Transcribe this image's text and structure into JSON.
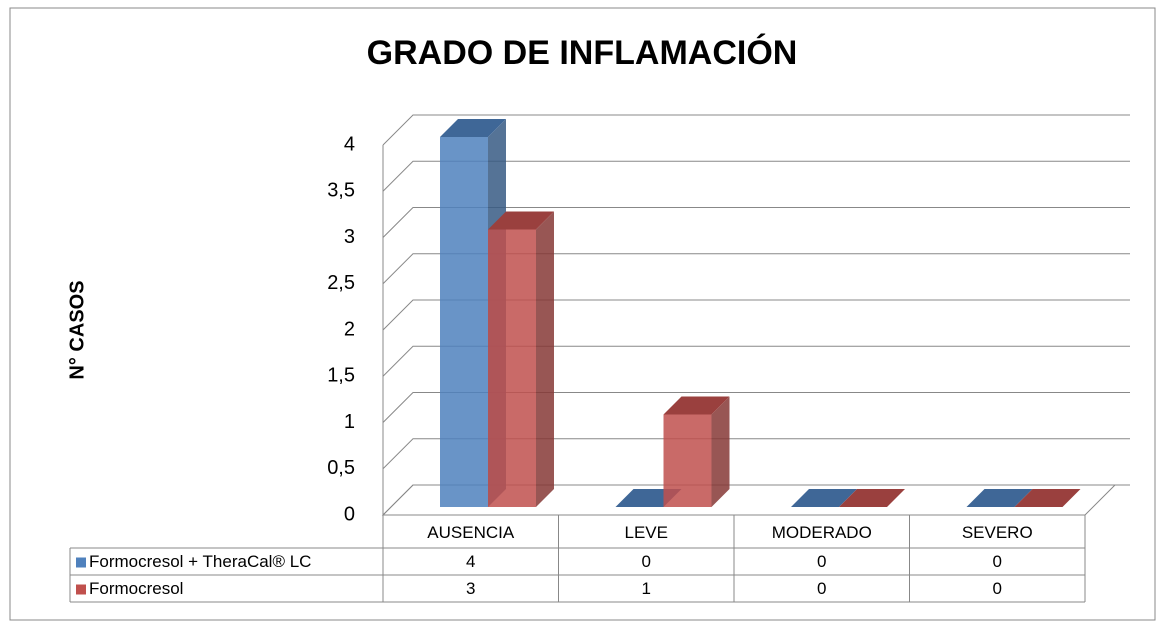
{
  "chart_data": {
    "type": "bar3d",
    "title": "GRADO DE INFLAMACIÓN",
    "y_label": "N° CASOS",
    "categories": [
      "AUSENCIA",
      "LEVE",
      "MODERADO",
      "SEVERO"
    ],
    "series": [
      {
        "name": "Formocresol + TheraCal® LC",
        "color": "#4f81bd",
        "values": [
          4,
          0,
          0,
          0
        ]
      },
      {
        "name": "Formocresol",
        "color": "#c0504d",
        "values": [
          3,
          1,
          0,
          0
        ]
      }
    ],
    "ylim": [
      0,
      4
    ],
    "yticks": [
      0,
      {
        "value": 0.5,
        "label": "0,5"
      },
      1,
      {
        "value": 1.5,
        "label": "1,5"
      },
      2,
      {
        "value": 2.5,
        "label": "2,5"
      },
      3,
      {
        "value": 3.5,
        "label": "3,5"
      },
      4
    ],
    "grid": true,
    "data_table": true
  }
}
